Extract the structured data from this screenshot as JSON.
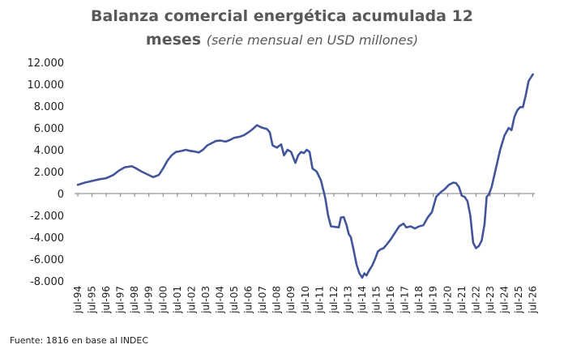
{
  "chart_data": {
    "type": "line",
    "title_line1": "Balanza comercial energética acumulada 12",
    "title_line2": "meses",
    "subtitle": "(serie mensual en USD millones)",
    "xlabel": "",
    "ylabel": "",
    "ylim": [
      -8000,
      12000
    ],
    "yticks": [
      "12.000",
      "10.000",
      "8.000",
      "6.000",
      "4.000",
      "2.000",
      "0",
      "-2.000",
      "-4.000",
      "-6.000",
      "-8.000"
    ],
    "ytick_values": [
      12000,
      10000,
      8000,
      6000,
      4000,
      2000,
      0,
      -2000,
      -4000,
      -6000,
      -8000
    ],
    "xlim": [
      1994.5,
      2026.58
    ],
    "xticks": [
      "jul-94",
      "jul-95",
      "jul-96",
      "jul-97",
      "jul-98",
      "jul-99",
      "jul-00",
      "jul-01",
      "jul-02",
      "jul-03",
      "jul-04",
      "jul-05",
      "jul-06",
      "jul-07",
      "jul-08",
      "jul-09",
      "jul-10",
      "jul-11",
      "jul-12",
      "jul-13",
      "jul-14",
      "jul-15",
      "jul-16",
      "jul-17",
      "jul-18",
      "jul-19",
      "jul-20",
      "jul-21",
      "jul-22",
      "jul-23",
      "jul-24",
      "jul-25",
      "jul-26"
    ],
    "xtick_values": [
      1994.5,
      1995.5,
      1996.5,
      1997.5,
      1998.5,
      1999.5,
      2000.5,
      2001.5,
      2002.5,
      2003.5,
      2004.5,
      2005.5,
      2006.5,
      2007.5,
      2008.5,
      2009.5,
      2010.5,
      2011.5,
      2012.5,
      2013.5,
      2014.5,
      2015.5,
      2016.5,
      2017.5,
      2018.5,
      2019.5,
      2020.5,
      2021.5,
      2022.5,
      2023.5,
      2024.5,
      2025.5,
      2026.5
    ],
    "grid": false,
    "line_color": "#42559a",
    "series": [
      {
        "points": [
          [
            1994.5,
            800
          ],
          [
            1995.0,
            1000
          ],
          [
            1995.5,
            1150
          ],
          [
            1996.0,
            1300
          ],
          [
            1996.5,
            1400
          ],
          [
            1997.0,
            1700
          ],
          [
            1997.4,
            2100
          ],
          [
            1997.8,
            2400
          ],
          [
            1998.3,
            2500
          ],
          [
            1998.6,
            2300
          ],
          [
            1999.0,
            2000
          ],
          [
            1999.4,
            1750
          ],
          [
            1999.8,
            1500
          ],
          [
            2000.2,
            1700
          ],
          [
            2000.5,
            2300
          ],
          [
            2000.8,
            3000
          ],
          [
            2001.1,
            3500
          ],
          [
            2001.4,
            3800
          ],
          [
            2001.8,
            3900
          ],
          [
            2002.1,
            4000
          ],
          [
            2002.4,
            3900
          ],
          [
            2002.7,
            3850
          ],
          [
            2003.0,
            3750
          ],
          [
            2003.3,
            4000
          ],
          [
            2003.6,
            4400
          ],
          [
            2003.9,
            4600
          ],
          [
            2004.2,
            4800
          ],
          [
            2004.5,
            4850
          ],
          [
            2004.9,
            4750
          ],
          [
            2005.2,
            4900
          ],
          [
            2005.5,
            5100
          ],
          [
            2005.9,
            5200
          ],
          [
            2006.2,
            5350
          ],
          [
            2006.5,
            5600
          ],
          [
            2006.8,
            5900
          ],
          [
            2007.1,
            6250
          ],
          [
            2007.4,
            6050
          ],
          [
            2007.8,
            5900
          ],
          [
            2008.0,
            5600
          ],
          [
            2008.2,
            4400
          ],
          [
            2008.5,
            4200
          ],
          [
            2008.8,
            4500
          ],
          [
            2009.0,
            3500
          ],
          [
            2009.25,
            4000
          ],
          [
            2009.5,
            3800
          ],
          [
            2009.8,
            2800
          ],
          [
            2010.0,
            3500
          ],
          [
            2010.2,
            3800
          ],
          [
            2010.4,
            3700
          ],
          [
            2010.6,
            4000
          ],
          [
            2010.8,
            3800
          ],
          [
            2011.0,
            2300
          ],
          [
            2011.3,
            2000
          ],
          [
            2011.6,
            1200
          ],
          [
            2011.9,
            -400
          ],
          [
            2012.1,
            -2000
          ],
          [
            2012.3,
            -3000
          ],
          [
            2012.6,
            -3050
          ],
          [
            2012.85,
            -3100
          ],
          [
            2013.0,
            -2200
          ],
          [
            2013.2,
            -2150
          ],
          [
            2013.4,
            -2900
          ],
          [
            2013.55,
            -3700
          ],
          [
            2013.7,
            -4000
          ],
          [
            2013.9,
            -5200
          ],
          [
            2014.1,
            -6500
          ],
          [
            2014.3,
            -7300
          ],
          [
            2014.5,
            -7700
          ],
          [
            2014.65,
            -7300
          ],
          [
            2014.8,
            -7500
          ],
          [
            2015.0,
            -7000
          ],
          [
            2015.2,
            -6600
          ],
          [
            2015.4,
            -6000
          ],
          [
            2015.6,
            -5300
          ],
          [
            2015.8,
            -5100
          ],
          [
            2016.0,
            -5000
          ],
          [
            2016.2,
            -4700
          ],
          [
            2016.5,
            -4200
          ],
          [
            2016.8,
            -3600
          ],
          [
            2017.1,
            -3000
          ],
          [
            2017.4,
            -2750
          ],
          [
            2017.6,
            -3100
          ],
          [
            2017.9,
            -3000
          ],
          [
            2018.2,
            -3200
          ],
          [
            2018.5,
            -3000
          ],
          [
            2018.8,
            -2900
          ],
          [
            2019.1,
            -2200
          ],
          [
            2019.4,
            -1700
          ],
          [
            2019.7,
            -300
          ],
          [
            2020.0,
            100
          ],
          [
            2020.3,
            400
          ],
          [
            2020.6,
            800
          ],
          [
            2020.9,
            1000
          ],
          [
            2021.1,
            950
          ],
          [
            2021.3,
            600
          ],
          [
            2021.5,
            -200
          ],
          [
            2021.7,
            -300
          ],
          [
            2021.9,
            -700
          ],
          [
            2022.1,
            -2000
          ],
          [
            2022.3,
            -4500
          ],
          [
            2022.5,
            -5000
          ],
          [
            2022.7,
            -4800
          ],
          [
            2022.9,
            -4300
          ],
          [
            2023.1,
            -2800
          ],
          [
            2023.25,
            -300
          ],
          [
            2023.4,
            -100
          ],
          [
            2023.6,
            600
          ],
          [
            2023.9,
            2300
          ],
          [
            2024.2,
            4000
          ],
          [
            2024.5,
            5300
          ],
          [
            2024.8,
            6000
          ],
          [
            2025.0,
            5800
          ],
          [
            2025.2,
            7000
          ],
          [
            2025.4,
            7600
          ],
          [
            2025.6,
            7900
          ],
          [
            2025.8,
            7900
          ],
          [
            2026.0,
            9000
          ],
          [
            2026.2,
            10300
          ],
          [
            2026.35,
            10600
          ],
          [
            2026.5,
            10900
          ]
        ]
      }
    ]
  },
  "source": "Fuente: 1816 en base al INDEC"
}
